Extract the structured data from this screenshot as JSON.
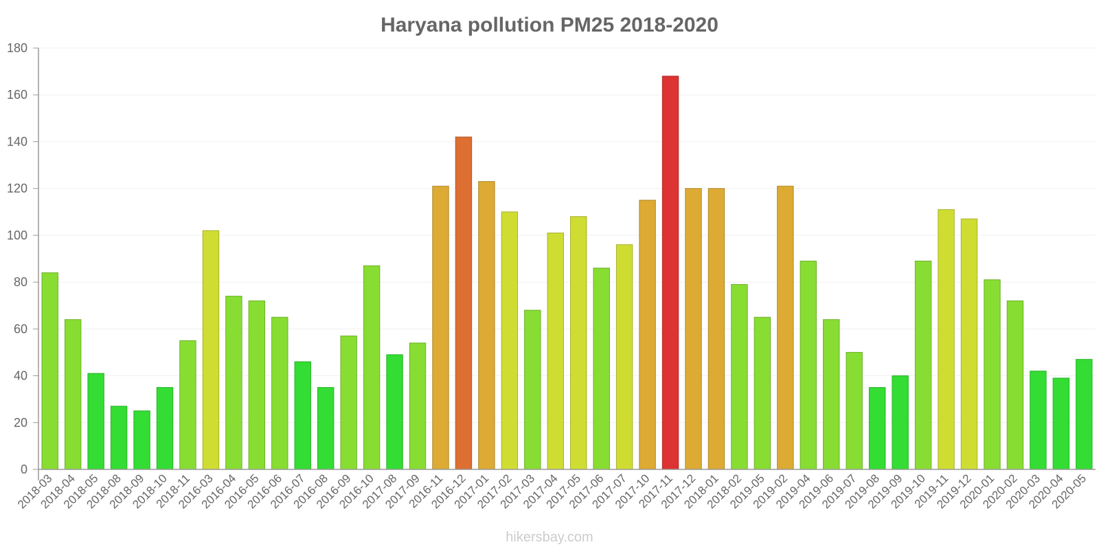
{
  "watermark": "hikersbay.com",
  "colors": {
    "low": "#33dd33",
    "mid_low": "#88dd33",
    "mid": "#cfdd33",
    "mid_high": "#ddaa33",
    "high": "#dd6f33",
    "very_high": "#dd3333"
  },
  "chart_data": {
    "type": "bar",
    "title": "Haryana pollution PM25 2018-2020",
    "xlabel": "",
    "ylabel": "",
    "ylim": [
      0,
      180
    ],
    "yticks": [
      0,
      20,
      40,
      60,
      80,
      100,
      120,
      140,
      160,
      180
    ],
    "grid": true,
    "legend": "none",
    "categories": [
      "2018-03",
      "2018-04",
      "2018-05",
      "2018-08",
      "2018-09",
      "2018-10",
      "2018-11",
      "2016-03",
      "2016-04",
      "2016-05",
      "2016-06",
      "2016-07",
      "2016-08",
      "2016-09",
      "2016-10",
      "2017-08",
      "2017-09",
      "2016-11",
      "2016-12",
      "2017-01",
      "2017-02",
      "2017-03",
      "2017-04",
      "2017-05",
      "2017-06",
      "2017-07",
      "2017-10",
      "2017-11",
      "2017-12",
      "2018-01",
      "2018-02",
      "2019-05",
      "2019-02",
      "2019-04",
      "2019-06",
      "2019-07",
      "2019-08",
      "2019-09",
      "2019-10",
      "2019-11",
      "2019-12",
      "2020-01",
      "2020-02",
      "2020-03",
      "2020-04",
      "2020-05"
    ],
    "values": [
      84,
      64,
      41,
      27,
      25,
      35,
      55,
      102,
      74,
      72,
      65,
      46,
      35,
      57,
      87,
      49,
      54,
      121,
      142,
      123,
      110,
      68,
      101,
      108,
      86,
      96,
      115,
      168,
      120,
      120,
      79,
      65,
      121,
      89,
      64,
      50,
      35,
      40,
      89,
      111,
      107,
      81,
      72,
      42,
      39,
      47
    ]
  }
}
